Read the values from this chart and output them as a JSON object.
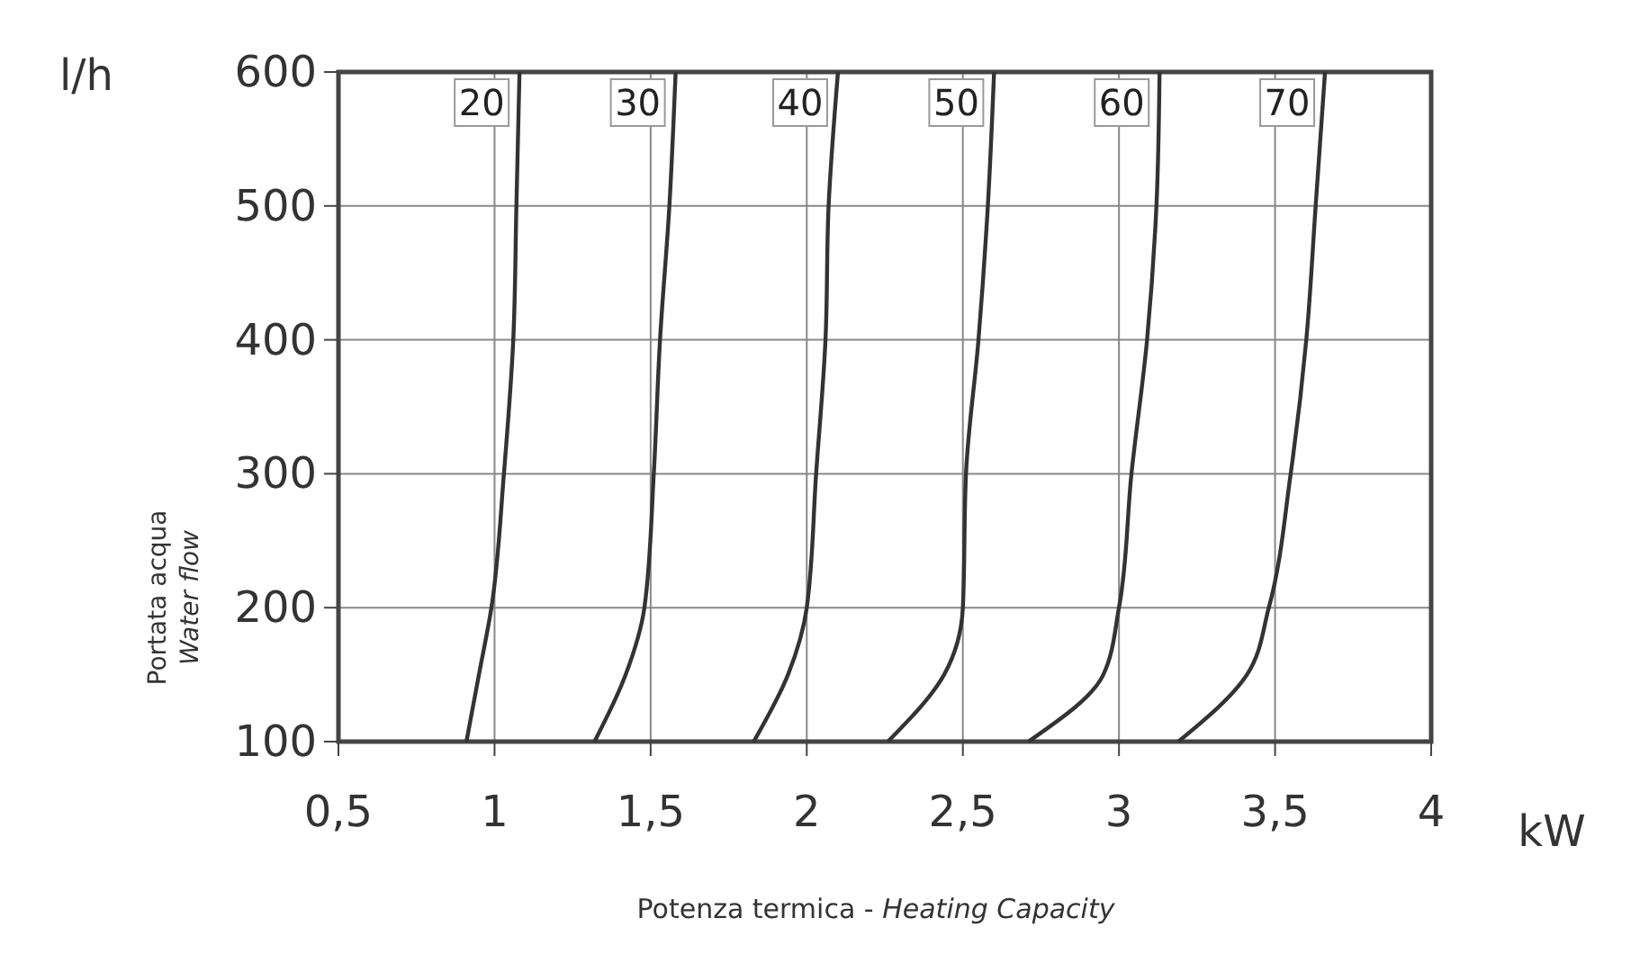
{
  "chart_data": {
    "type": "line",
    "xlabel": "Potenza termica - Heating Capacity",
    "ylabel": "Portata acqua\nWater flow",
    "annotations": [
      "l/h",
      "kW"
    ],
    "xlim": [
      0.5,
      4
    ],
    "xticks": [
      {
        "value": 0.5,
        "label": "0,5"
      },
      1,
      {
        "value": 1.5,
        "label": "1,5"
      },
      2,
      {
        "value": 2.5,
        "label": "2,5"
      },
      3,
      {
        "value": 3.5,
        "label": "3,5"
      },
      4
    ],
    "ylim": [
      100,
      600
    ],
    "yticks": [
      100,
      200,
      300,
      400,
      500,
      600
    ],
    "grid": true,
    "marker": "none",
    "line_style": "solid",
    "series": [
      {
        "name": "20",
        "color": "#333333",
        "x": [
          0.91,
          0.95,
          0.99,
          1.03,
          1.06,
          1.07,
          1.08
        ],
        "values": [
          100,
          150,
          200,
          300,
          400,
          500,
          600
        ]
      },
      {
        "name": "30",
        "color": "#333333",
        "x": [
          1.32,
          1.42,
          1.48,
          1.51,
          1.53,
          1.56,
          1.58
        ],
        "values": [
          100,
          150,
          200,
          300,
          400,
          500,
          600
        ]
      },
      {
        "name": "40",
        "color": "#333333",
        "x": [
          1.83,
          1.94,
          2.0,
          2.03,
          2.06,
          2.07,
          2.1
        ],
        "values": [
          100,
          150,
          200,
          300,
          400,
          500,
          600
        ]
      },
      {
        "name": "50",
        "color": "#333333",
        "x": [
          2.26,
          2.44,
          2.5,
          2.51,
          2.55,
          2.58,
          2.6
        ],
        "values": [
          100,
          150,
          200,
          300,
          400,
          500,
          600
        ]
      },
      {
        "name": "60",
        "color": "#333333",
        "x": [
          2.71,
          2.95,
          3.0,
          3.04,
          3.09,
          3.12,
          3.13
        ],
        "values": [
          100,
          150,
          200,
          300,
          400,
          500,
          600
        ]
      },
      {
        "name": "70",
        "color": "#333333",
        "x": [
          3.19,
          3.41,
          3.48,
          3.55,
          3.6,
          3.63,
          3.66
        ],
        "values": [
          100,
          150,
          200,
          300,
          400,
          500,
          600
        ]
      }
    ]
  }
}
